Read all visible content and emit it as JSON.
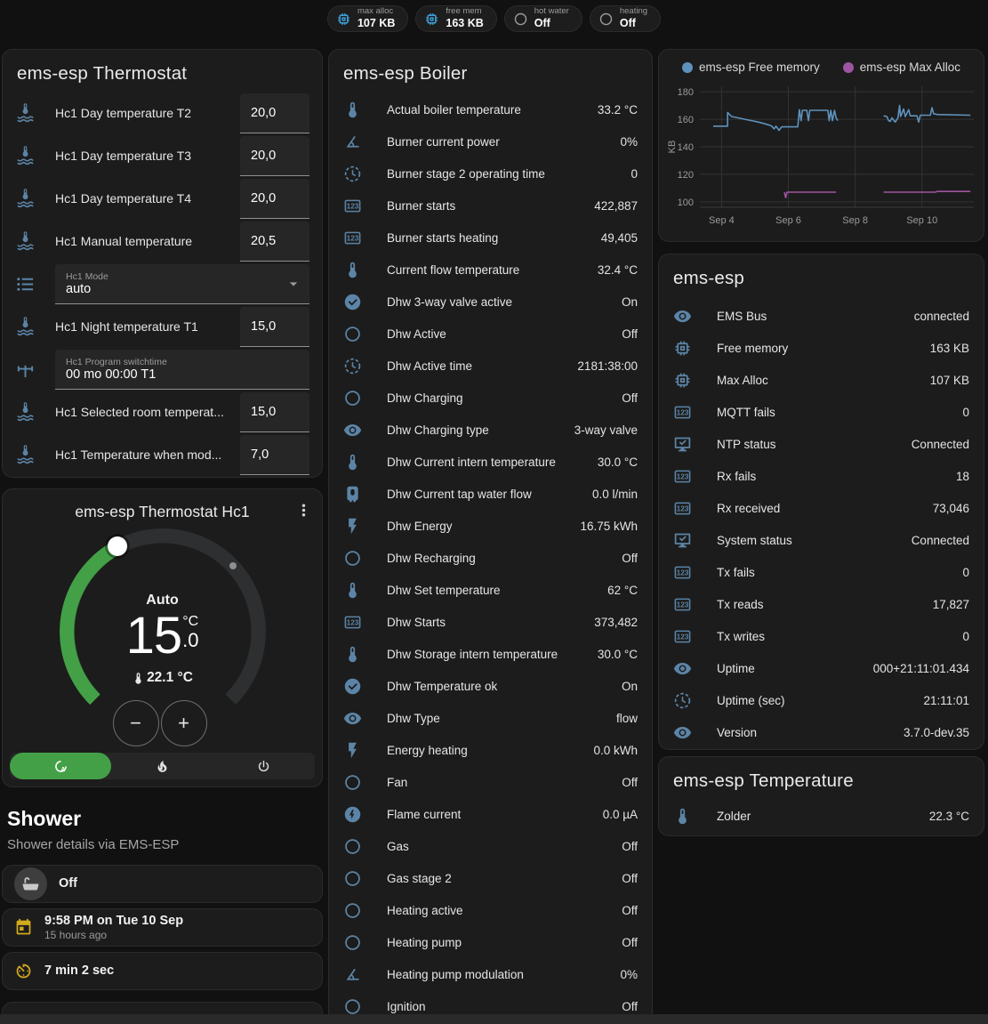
{
  "header": {
    "badges": [
      {
        "icon": "memory-icon",
        "icon_color": "#3fa2dc",
        "label": "max alloc",
        "value": "107 KB"
      },
      {
        "icon": "memory-icon",
        "icon_color": "#3fa2dc",
        "label": "free mem",
        "value": "163 KB"
      },
      {
        "icon": "circle-outline-icon",
        "icon_color": "#9b9b9b",
        "label": "hot water",
        "value": "Off"
      },
      {
        "icon": "circle-outline-icon",
        "icon_color": "#9b9b9b",
        "label": "heating",
        "value": "Off"
      }
    ]
  },
  "thermostat_card": {
    "title": "ems-esp Thermostat",
    "rows": [
      {
        "type": "number",
        "icon": "thermometer-water-icon",
        "label": "Hc1 Day temperature T2",
        "value": "20,0"
      },
      {
        "type": "number",
        "icon": "thermometer-water-icon",
        "label": "Hc1 Day temperature T3",
        "value": "20,0"
      },
      {
        "type": "number",
        "icon": "thermometer-water-icon",
        "label": "Hc1 Day temperature T4",
        "value": "20,0"
      },
      {
        "type": "number",
        "icon": "thermometer-water-icon",
        "label": "Hc1 Manual temperature",
        "value": "20,5"
      },
      {
        "type": "select",
        "icon": "list-icon",
        "label": "Hc1 Mode",
        "value": "auto"
      },
      {
        "type": "number",
        "icon": "thermometer-water-icon",
        "label": "Hc1 Night temperature T1",
        "value": "15,0"
      },
      {
        "type": "text",
        "icon": "pipe-valve-icon",
        "label": "Hc1 Program switchtime",
        "value": "00 mo 00:00 T1"
      },
      {
        "type": "number",
        "icon": "thermometer-water-icon",
        "label": "Hc1 Selected room temperat...",
        "value": "15,0"
      },
      {
        "type": "number",
        "icon": "thermometer-water-icon",
        "label": "Hc1 Temperature when mod...",
        "value": "7,0"
      }
    ]
  },
  "hc1_card": {
    "title": "ems-esp Thermostat Hc1",
    "mode": "Auto",
    "target_whole": "15",
    "unit": "°C",
    "target_decimal": ".0",
    "current_temp": "22.1 °C",
    "accent_green": "#43a047",
    "modes": [
      {
        "icon": "thermostat-auto-icon",
        "active": true
      },
      {
        "icon": "fire-icon",
        "active": false
      },
      {
        "icon": "power-icon",
        "active": false
      }
    ]
  },
  "shower": {
    "title": "Shower",
    "subtitle": "Shower details via EMS-ESP",
    "items": [
      {
        "style": "avatar",
        "icon": "bathtub-icon",
        "primary": "Off"
      },
      {
        "style": "plain",
        "icon": "calendar-icon",
        "icon_color": "#d2a91d",
        "primary": "9:58 PM on Tue 10 Sep",
        "secondary": "15 hours ago"
      },
      {
        "style": "plain",
        "icon": "timer-icon",
        "icon_color": "#d2a91d",
        "primary": "7 min 2 sec"
      },
      {
        "style": "partial",
        "icon": "snowflake-alert-icon",
        "icon_color": "#5794c8"
      }
    ]
  },
  "boiler_card": {
    "title": "ems-esp Boiler",
    "rows": [
      {
        "icon": "thermometer-icon",
        "label": "Actual boiler temperature",
        "value": "33.2 °C"
      },
      {
        "icon": "angle-acute-icon",
        "label": "Burner current power",
        "value": "0%"
      },
      {
        "icon": "progress-clock-icon",
        "label": "Burner stage 2 operating time",
        "value": "0"
      },
      {
        "icon": "counter-icon",
        "label": "Burner starts",
        "value": "422,887"
      },
      {
        "icon": "counter-icon",
        "label": "Burner starts heating",
        "value": "49,405"
      },
      {
        "icon": "thermometer-icon",
        "label": "Current flow temperature",
        "value": "32.4 °C"
      },
      {
        "icon": "check-circle-icon",
        "label": "Dhw 3-way valve active",
        "value": "On"
      },
      {
        "icon": "circle-outline-icon",
        "label": "Dhw Active",
        "value": "Off"
      },
      {
        "icon": "progress-clock-icon",
        "label": "Dhw Active time",
        "value": "2181:38:00"
      },
      {
        "icon": "circle-outline-icon",
        "label": "Dhw Charging",
        "value": "Off"
      },
      {
        "icon": "eye-icon",
        "label": "Dhw Charging type",
        "value": "3-way valve"
      },
      {
        "icon": "thermometer-icon",
        "label": "Dhw Current intern temperature",
        "value": "30.0 °C"
      },
      {
        "icon": "water-boiler-icon",
        "label": "Dhw Current tap water flow",
        "value": "0.0 l/min"
      },
      {
        "icon": "flash-icon",
        "label": "Dhw Energy",
        "value": "16.75 kWh"
      },
      {
        "icon": "circle-outline-icon",
        "label": "Dhw Recharging",
        "value": "Off"
      },
      {
        "icon": "thermometer-icon",
        "label": "Dhw Set temperature",
        "value": "62 °C"
      },
      {
        "icon": "counter-icon",
        "label": "Dhw Starts",
        "value": "373,482"
      },
      {
        "icon": "thermometer-icon",
        "label": "Dhw Storage intern temperature",
        "value": "30.0 °C"
      },
      {
        "icon": "check-circle-icon",
        "label": "Dhw Temperature ok",
        "value": "On"
      },
      {
        "icon": "eye-icon",
        "label": "Dhw Type",
        "value": "flow"
      },
      {
        "icon": "flash-icon",
        "label": "Energy heating",
        "value": "0.0 kWh"
      },
      {
        "icon": "circle-outline-icon",
        "label": "Fan",
        "value": "Off"
      },
      {
        "icon": "flash-circle-icon",
        "label": "Flame current",
        "value": "0.0 µA"
      },
      {
        "icon": "circle-outline-icon",
        "label": "Gas",
        "value": "Off"
      },
      {
        "icon": "circle-outline-icon",
        "label": "Gas stage 2",
        "value": "Off"
      },
      {
        "icon": "circle-outline-icon",
        "label": "Heating active",
        "value": "Off"
      },
      {
        "icon": "circle-outline-icon",
        "label": "Heating pump",
        "value": "Off"
      },
      {
        "icon": "angle-acute-icon",
        "label": "Heating pump modulation",
        "value": "0%"
      },
      {
        "icon": "circle-outline-icon",
        "label": "Ignition",
        "value": "Off"
      }
    ]
  },
  "emsesp_card": {
    "title": "ems-esp",
    "rows": [
      {
        "icon": "eye-icon",
        "label": "EMS Bus",
        "value": "connected"
      },
      {
        "icon": "memory-icon",
        "label": "Free memory",
        "value": "163 KB"
      },
      {
        "icon": "memory-icon",
        "label": "Max Alloc",
        "value": "107 KB"
      },
      {
        "icon": "counter-icon",
        "label": "MQTT fails",
        "value": "0"
      },
      {
        "icon": "monitor-check-icon",
        "label": "NTP status",
        "value": "Connected"
      },
      {
        "icon": "counter-icon",
        "label": "Rx fails",
        "value": "18"
      },
      {
        "icon": "counter-icon",
        "label": "Rx received",
        "value": "73,046"
      },
      {
        "icon": "monitor-check-icon",
        "label": "System status",
        "value": "Connected"
      },
      {
        "icon": "counter-icon",
        "label": "Tx fails",
        "value": "0"
      },
      {
        "icon": "counter-icon",
        "label": "Tx reads",
        "value": "17,827"
      },
      {
        "icon": "counter-icon",
        "label": "Tx writes",
        "value": "0"
      },
      {
        "icon": "eye-icon",
        "label": "Uptime",
        "value": "000+21:11:01.434"
      },
      {
        "icon": "progress-clock-icon",
        "label": "Uptime (sec)",
        "value": "21:11:01"
      },
      {
        "icon": "eye-icon",
        "label": "Version",
        "value": "3.7.0-dev.35"
      }
    ]
  },
  "temperature_card": {
    "title": "ems-esp Temperature",
    "rows": [
      {
        "icon": "thermometer-icon",
        "label": "Zolder",
        "value": "22.3 °C"
      }
    ]
  },
  "chart_data": {
    "type": "line",
    "title": "",
    "xlabel": "",
    "ylabel": "KB",
    "grid": true,
    "legend_position": "top",
    "xlim": [
      3.35,
      11.55
    ],
    "ylim": [
      96,
      184
    ],
    "yticks": [
      100,
      120,
      140,
      160,
      180
    ],
    "xticks": [
      {
        "v": 4,
        "label": "Sep 4"
      },
      {
        "v": 6,
        "label": "Sep 6"
      },
      {
        "v": 8,
        "label": "Sep 8"
      },
      {
        "v": 10,
        "label": "Sep 10"
      }
    ],
    "series": [
      {
        "name": "ems-esp Free memory",
        "color": "#5e92bd",
        "points": [
          [
            3.75,
            155
          ],
          [
            4.18,
            155
          ],
          [
            4.18,
            165
          ],
          [
            4.3,
            162
          ],
          [
            4.5,
            161
          ],
          [
            4.7,
            160
          ],
          [
            4.9,
            159
          ],
          [
            5.1,
            158
          ],
          [
            5.25,
            157
          ],
          [
            5.4,
            156
          ],
          [
            5.5,
            155
          ],
          [
            5.57,
            153
          ],
          [
            5.63,
            155
          ],
          [
            5.72,
            152
          ],
          [
            5.8,
            154.5
          ],
          [
            6.28,
            154.5
          ],
          [
            6.33,
            167
          ],
          [
            6.38,
            159
          ],
          [
            6.42,
            166.5
          ],
          [
            6.55,
            166.5
          ],
          [
            6.6,
            159
          ],
          [
            6.64,
            166.5
          ],
          [
            7.18,
            166.5
          ],
          [
            7.22,
            159
          ],
          [
            7.27,
            166.5
          ],
          [
            7.32,
            159
          ],
          [
            7.38,
            166.5
          ],
          [
            7.43,
            161
          ],
          [
            7.48,
            159
          ],
          null,
          [
            8.85,
            162.5
          ],
          [
            8.95,
            162
          ],
          [
            9.0,
            159
          ],
          [
            9.05,
            158.5
          ],
          [
            9.1,
            161
          ],
          [
            9.2,
            158
          ],
          [
            9.28,
            161
          ],
          [
            9.33,
            170
          ],
          [
            9.36,
            162
          ],
          [
            9.45,
            167.5
          ],
          [
            9.5,
            162
          ],
          [
            9.6,
            167
          ],
          [
            9.65,
            162.5
          ],
          [
            9.85,
            162.5
          ],
          [
            9.9,
            158
          ],
          [
            9.95,
            163
          ],
          [
            10.25,
            163
          ],
          [
            10.3,
            168.5
          ],
          [
            10.35,
            164
          ],
          [
            10.45,
            163.5
          ],
          [
            11.45,
            163
          ]
        ]
      },
      {
        "name": "ems-esp Max Alloc",
        "color": "#9e54a0",
        "points": [
          [
            5.88,
            107
          ],
          [
            5.92,
            103
          ],
          [
            5.96,
            107
          ],
          [
            7.43,
            107
          ],
          null,
          [
            8.85,
            107
          ],
          [
            10.4,
            107
          ],
          [
            10.45,
            107.5
          ],
          [
            11.45,
            107.5
          ]
        ]
      }
    ]
  }
}
